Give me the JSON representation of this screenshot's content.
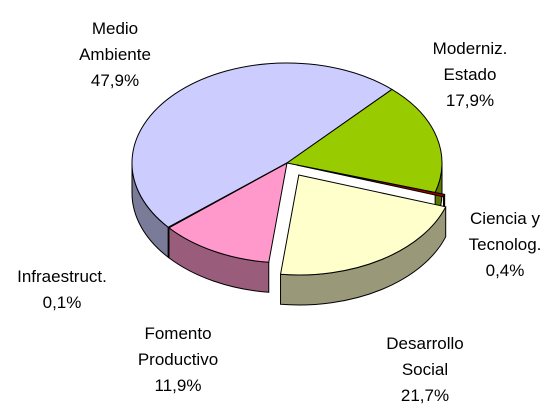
{
  "chart_data": {
    "type": "pie3d",
    "categories": [
      "Medio\nAmbiente",
      "Moderniz.\nEstado",
      "Ciencia y\nTecnolog.",
      "Desarrollo\nSocial",
      "Fomento\nProductivo",
      "Infraestruct."
    ],
    "values": [
      47.9,
      17.9,
      0.4,
      21.7,
      11.9,
      0.1
    ],
    "value_labels": [
      "47,9%",
      "17,9%",
      "0,4%",
      "21,7%",
      "11,9%",
      "0,1%"
    ],
    "colors": [
      "#ccccff",
      "#99cc00",
      "#990000",
      "#ffffcc",
      "#ff99cc",
      "#9999ff"
    ]
  }
}
